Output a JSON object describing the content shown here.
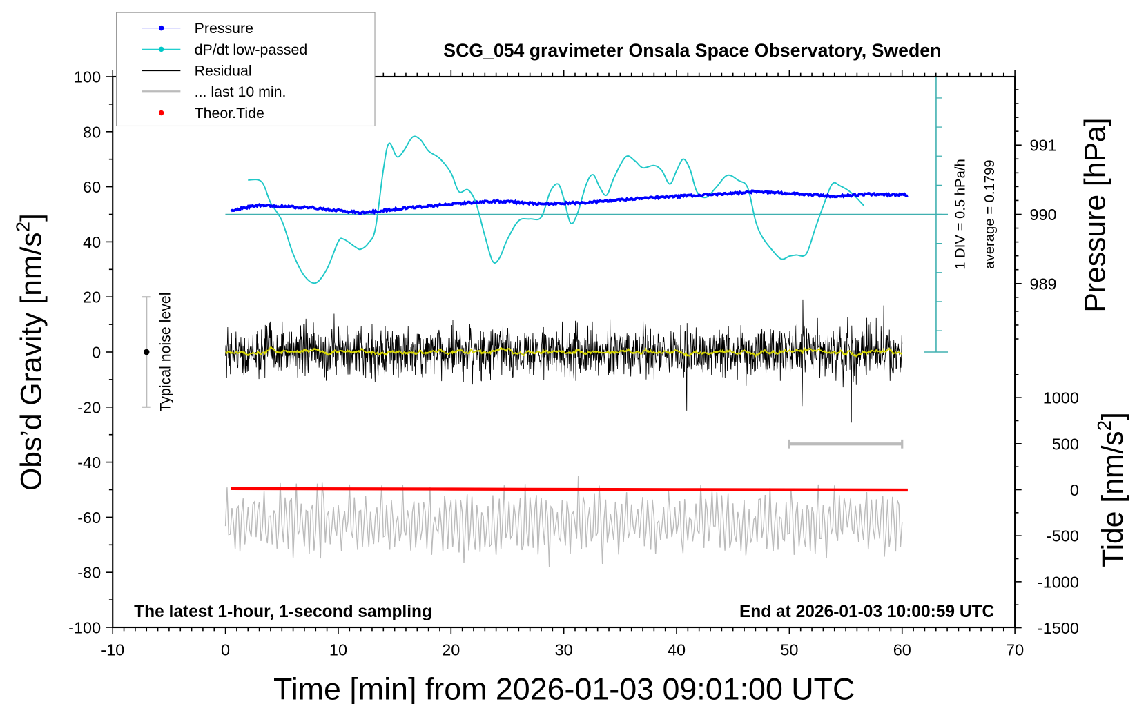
{
  "chart_data": {
    "type": "line",
    "title": "SCG_054 gravimeter Onsala Space Observatory, Sweden",
    "xlabel": "Time [min] from 2026-01-03 09:01:00 UTC",
    "ylabel": {
      "text": "Obs’d Gravity [nm/s",
      "sup": "2",
      "end": "]"
    },
    "ylabel_pressure": "Pressure [hPa]",
    "ylabel_tide": {
      "text": "Tide [nm/s",
      "sup": "2",
      "end": "]"
    },
    "xlim": [
      -10,
      70
    ],
    "ylim": [
      -100,
      100
    ],
    "pressure_lim": [
      988,
      992
    ],
    "tide_lim": [
      -1500,
      1000
    ],
    "x_ticks": [
      -10,
      0,
      10,
      20,
      30,
      40,
      50,
      60,
      70
    ],
    "y_ticks": [
      -100,
      -80,
      -60,
      -40,
      -20,
      0,
      20,
      40,
      60,
      80,
      100
    ],
    "pressure_ticks": [
      989,
      990,
      991
    ],
    "tide_ticks": [
      -1500,
      -1000,
      -500,
      0,
      500,
      1000
    ],
    "grid": false,
    "legend_placement": "top-left",
    "legend": [
      {
        "label": "Pressure",
        "color": "#0000ff",
        "marker": true
      },
      {
        "label": "dP/dt low-passed",
        "color": "#00c8c8",
        "marker": true
      },
      {
        "label": "Residual",
        "color": "#000000",
        "marker": false
      },
      {
        "label": "... last 10 min.",
        "color": "#bbbbbb",
        "marker": false
      },
      {
        "label": "Theor.Tide",
        "color": "#ff0000",
        "marker": true
      }
    ],
    "dpdt_axis": {
      "div_label": "1 DIV = 0.5 hPa/h",
      "average_label": "average = 0.1799",
      "average": 0.1799,
      "div": 0.5,
      "color": "#40b0b0"
    },
    "series": [
      {
        "name": "Pressure",
        "unit": "hPa",
        "color": "#0000ff",
        "x": [
          0.5,
          3,
          8,
          12,
          16,
          20,
          24,
          28,
          32,
          36,
          40,
          44,
          47,
          50,
          54,
          57,
          60.5
        ],
        "y": [
          990.06,
          990.13,
          990.09,
          990.02,
          990.09,
          990.15,
          990.19,
          990.15,
          990.17,
          990.22,
          990.26,
          990.29,
          990.33,
          990.3,
          990.26,
          990.29,
          990.28
        ]
      },
      {
        "name": "dP/dt low-passed",
        "unit": "hPa/h",
        "color": "#20c8c8",
        "x": [
          2,
          3.2,
          4,
          5,
          6,
          7,
          8,
          9,
          10,
          10.5,
          11.5,
          12,
          12.7,
          13.3,
          14,
          14.5,
          15.2,
          15.8,
          16.6,
          17.3,
          18,
          19,
          20,
          20.7,
          21.5,
          22.2,
          23,
          23.7,
          24.3,
          25,
          26,
          27,
          28,
          28.8,
          29.5,
          30,
          30.6,
          31.2,
          32,
          32.6,
          33.2,
          33.8,
          34.5,
          35.5,
          36.3,
          37,
          38,
          38.7,
          39.4,
          40,
          40.6,
          41.2,
          41.8,
          42.6,
          43.5,
          44.5,
          45.5,
          46.3,
          47,
          47.6,
          48.5,
          49.3,
          50,
          50.6,
          51.5,
          52.3,
          53,
          53.8,
          54.5,
          55.5,
          56.6
        ],
        "y": [
          0.77,
          0.74,
          0.38,
          0.07,
          -0.5,
          -0.88,
          -1.0,
          -0.76,
          -0.29,
          -0.25,
          -0.38,
          -0.42,
          -0.31,
          -0.06,
          0.95,
          1.4,
          1.17,
          1.27,
          1.51,
          1.46,
          1.27,
          1.14,
          0.89,
          0.57,
          0.6,
          0.38,
          -0.19,
          -0.63,
          -0.57,
          -0.25,
          0.07,
          0.1,
          0.13,
          0.57,
          0.7,
          0.45,
          0.03,
          0.19,
          0.7,
          0.86,
          0.64,
          0.51,
          0.83,
          1.17,
          1.1,
          0.98,
          1.02,
          0.93,
          0.7,
          0.93,
          1.13,
          0.95,
          0.57,
          0.47,
          0.64,
          0.85,
          0.76,
          0.64,
          0.07,
          -0.21,
          -0.44,
          -0.59,
          -0.54,
          -0.52,
          -0.5,
          -0.06,
          0.32,
          0.7,
          0.67,
          0.55,
          0.33
        ]
      },
      {
        "name": "Residual",
        "unit": "nm/s2",
        "color": "#000000",
        "x_range": [
          0,
          60
        ],
        "mean": 0,
        "typical_range": [
          -15,
          15
        ],
        "max": 27,
        "min": -31
      },
      {
        "name": "Residual smoothed",
        "unit": "nm/s2",
        "color": "#d8d800",
        "x_range": [
          0,
          60
        ],
        "mean": 0,
        "typical_range": [
          -2,
          2
        ]
      },
      {
        "name": "... last 10 min.",
        "unit": "nm/s2",
        "color": "#bbbbbb",
        "x_range": [
          0,
          60
        ],
        "mean": -62,
        "typical_range": [
          -80,
          -42
        ]
      },
      {
        "name": "Theor.Tide",
        "unit": "nm/s2",
        "color": "#ff0000",
        "x": [
          0.5,
          20,
          40,
          60.5
        ],
        "y": [
          12,
          7,
          1,
          -4
        ]
      }
    ],
    "noise_level": {
      "label": "Typical noise level",
      "x": -7,
      "center": 0,
      "range": [
        -20,
        20
      ]
    },
    "last10_bar": {
      "x_range": [
        50,
        60
      ],
      "y": -33.4
    },
    "note_left": "The latest 1-hour, 1-second sampling",
    "note_right": "End at 2026-01-03 10:00:59 UTC"
  }
}
